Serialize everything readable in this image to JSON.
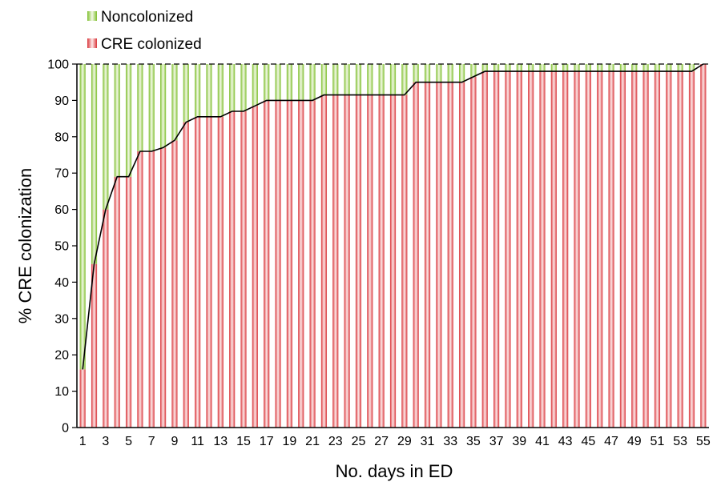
{
  "chart_data": {
    "type": "bar",
    "stacked": true,
    "title": "",
    "xlabel": "No. days in ED",
    "ylabel": "% CRE colonization",
    "ylim": [
      0,
      100
    ],
    "yticks": [
      0,
      10,
      20,
      30,
      40,
      50,
      60,
      70,
      80,
      90,
      100
    ],
    "x": [
      1,
      2,
      3,
      4,
      5,
      6,
      7,
      8,
      9,
      10,
      11,
      12,
      13,
      14,
      15,
      16,
      17,
      18,
      19,
      20,
      21,
      22,
      23,
      24,
      25,
      26,
      27,
      28,
      29,
      30,
      31,
      32,
      33,
      34,
      35,
      36,
      37,
      38,
      39,
      40,
      41,
      42,
      43,
      44,
      45,
      46,
      47,
      48,
      49,
      50,
      51,
      52,
      53,
      54,
      55
    ],
    "xtick_labels": [
      1,
      3,
      5,
      7,
      9,
      11,
      13,
      15,
      17,
      19,
      21,
      23,
      25,
      27,
      29,
      31,
      33,
      35,
      37,
      39,
      41,
      43,
      45,
      47,
      49,
      51,
      53,
      55
    ],
    "legend_position": "top-left",
    "grid": false,
    "series": [
      {
        "name": "Noncolonized",
        "color": "#8dc63f",
        "values": [
          84,
          55,
          40,
          31,
          31,
          24,
          24,
          23,
          21,
          16,
          14.5,
          14.5,
          14.5,
          13,
          13,
          11.5,
          10,
          10,
          10,
          10,
          10,
          8.5,
          8.5,
          8.5,
          8.5,
          8.5,
          8.5,
          8.5,
          8.5,
          5,
          5,
          5,
          5,
          5,
          3.5,
          2,
          2,
          2,
          2,
          2,
          2,
          2,
          2,
          2,
          2,
          2,
          2,
          2,
          2,
          2,
          2,
          2,
          2,
          2,
          0
        ]
      },
      {
        "name": "CRE colonized",
        "color": "#e05c5c",
        "values": [
          16,
          45,
          60,
          69,
          69,
          76,
          76,
          77,
          79,
          84,
          85.5,
          85.5,
          85.5,
          87,
          87,
          88.5,
          90,
          90,
          90,
          90,
          90,
          91.5,
          91.5,
          91.5,
          91.5,
          91.5,
          91.5,
          91.5,
          91.5,
          95,
          95,
          95,
          95,
          95,
          96.5,
          98,
          98,
          98,
          98,
          98,
          98,
          98,
          98,
          98,
          98,
          98,
          98,
          98,
          98,
          98,
          98,
          98,
          98,
          98,
          100
        ]
      }
    ]
  }
}
